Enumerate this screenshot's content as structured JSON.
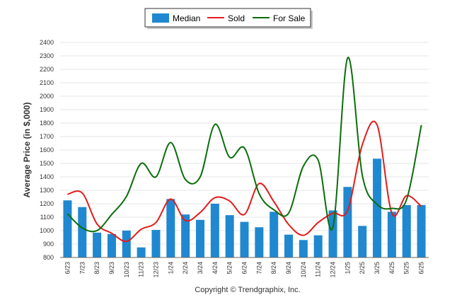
{
  "chart_data": {
    "type": "bar",
    "categories": [
      "6/23",
      "7/23",
      "8/23",
      "9/23",
      "10/23",
      "11/23",
      "12/23",
      "1/24",
      "2/24",
      "3/24",
      "4/24",
      "5/24",
      "6/24",
      "7/24",
      "8/24",
      "9/24",
      "10/24",
      "11/24",
      "12/24",
      "1/25",
      "2/25",
      "3/25",
      "4/25",
      "5/25",
      "6/25"
    ],
    "series": [
      {
        "name": "Median",
        "kind": "bar",
        "color": "#1f88d0",
        "values": [
          1225,
          1175,
          985,
          975,
          1000,
          875,
          1005,
          1235,
          1120,
          1080,
          1200,
          1115,
          1065,
          1025,
          1140,
          970,
          930,
          965,
          1150,
          1325,
          1035,
          1535,
          1140,
          1190,
          1190
        ]
      },
      {
        "name": "Sold",
        "kind": "line",
        "color": "#e31b1b",
        "values": [
          1270,
          1280,
          1050,
          980,
          920,
          1010,
          1060,
          1235,
          1075,
          1135,
          1245,
          1220,
          1120,
          1350,
          1215,
          1045,
          965,
          1060,
          1130,
          1150,
          1640,
          1785,
          1130,
          1260,
          1180
        ]
      },
      {
        "name": "For Sale",
        "kind": "line",
        "color": "#0a6e0a",
        "values": [
          1125,
          1020,
          1000,
          1120,
          1255,
          1500,
          1400,
          1655,
          1380,
          1400,
          1790,
          1545,
          1615,
          1275,
          1155,
          1130,
          1480,
          1525,
          1025,
          2285,
          1410,
          1195,
          1165,
          1230,
          1785
        ]
      }
    ],
    "ylabel": "Average Price (in $,000)",
    "xlabel": "",
    "ylim": [
      800,
      2400
    ],
    "yticks": [
      800,
      900,
      1000,
      1100,
      1200,
      1300,
      1400,
      1500,
      1600,
      1700,
      1800,
      1900,
      2000,
      2100,
      2200,
      2300,
      2400
    ],
    "grid": true,
    "legend_position": "top-center"
  },
  "credit": "Copyright © Trendgraphix, Inc."
}
